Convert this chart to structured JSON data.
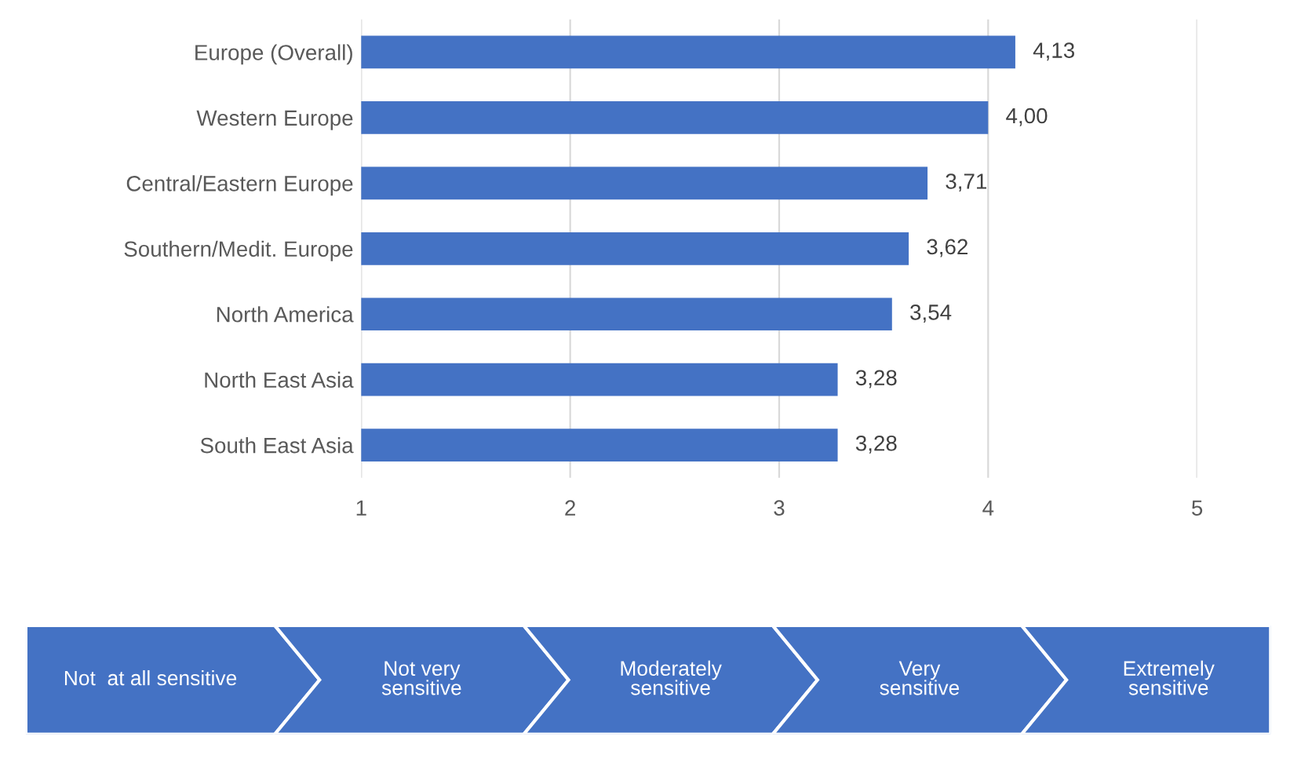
{
  "chart_data": {
    "type": "bar",
    "orientation": "horizontal",
    "categories": [
      "Europe (Overall)",
      "Western Europe",
      "Central/Eastern Europe",
      "Southern/Medit. Europe",
      "North America",
      "North East Asia",
      "South East Asia"
    ],
    "values": [
      4.13,
      4.0,
      3.71,
      3.62,
      3.54,
      3.28,
      3.28
    ],
    "value_labels": [
      "4,13",
      "4,00",
      "3,71",
      "3,62",
      "3,54",
      "3,28",
      "3,28"
    ],
    "color": "#4472c4",
    "xlim": [
      1,
      5
    ],
    "xticks": [
      1,
      2,
      3,
      4,
      5
    ],
    "grid": "x",
    "annotations": [
      "Not  at all sensitive",
      "Not very\nsensitive",
      "Moderately\nsensitive",
      "Very\nsensitive",
      "Extremely\nsensitive"
    ]
  }
}
